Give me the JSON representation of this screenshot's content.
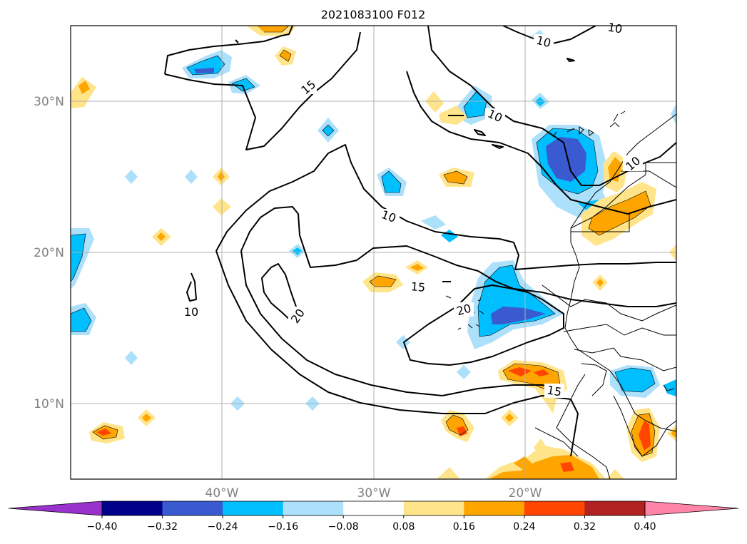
{
  "title": "2021083100 F012",
  "map": {
    "lat_labels": [
      "30°N",
      "20°N",
      "10°N"
    ],
    "lon_labels": [
      "40°W",
      "30°W",
      "20°W"
    ],
    "contour_labels": [
      "15",
      "10",
      "10",
      "10",
      "10",
      "10",
      "20",
      "15",
      "20",
      "15"
    ],
    "grid": true
  },
  "colorbar": {
    "colors": [
      "#9932cc",
      "#00008b",
      "#3a5bd0",
      "#00bfff",
      "#ade0fa",
      "#ffffff",
      "#ffe48a",
      "#ffa500",
      "#ff4500",
      "#b22222",
      "#ff85a8"
    ],
    "tick_labels": [
      "−0.40",
      "−0.32",
      "−0.24",
      "−0.16",
      "−0.08",
      "0.08",
      "0.16",
      "0.24",
      "0.32",
      "0.40"
    ],
    "extend": "both"
  },
  "colors": {
    "light_blue": "#ade0fa",
    "blue": "#00bfff",
    "royal_blue": "#3a5bd0",
    "dark_blue": "#00008b",
    "yellow": "#ffe48a",
    "orange": "#ffa500",
    "red_orange": "#ff4500"
  }
}
